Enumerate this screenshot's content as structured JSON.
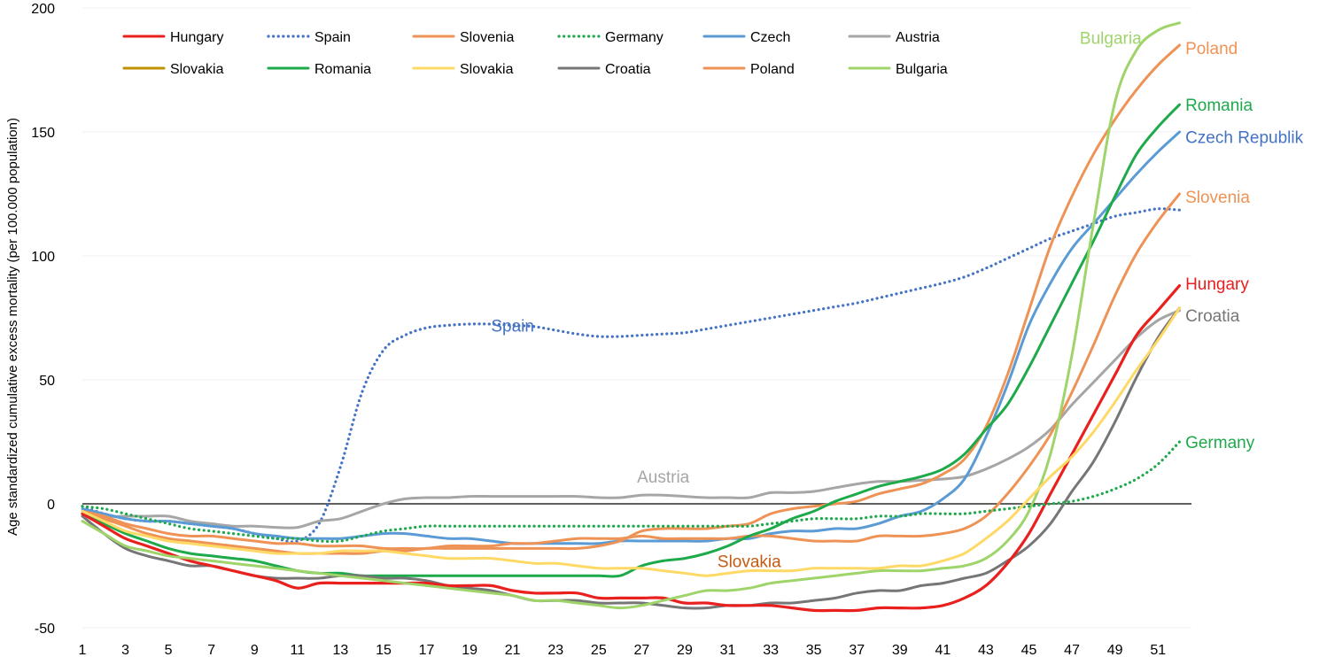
{
  "chart_data": {
    "type": "line",
    "ylabel": "Age standardized cumulative excess mortality  (per 100.000 population)",
    "ylim": [
      -50,
      200
    ],
    "yticks": [
      200,
      150,
      100,
      50,
      0,
      -50
    ],
    "x": [
      1,
      2,
      3,
      4,
      5,
      6,
      7,
      8,
      9,
      10,
      11,
      12,
      13,
      14,
      15,
      16,
      17,
      18,
      19,
      20,
      21,
      22,
      23,
      24,
      25,
      26,
      27,
      28,
      29,
      30,
      31,
      32,
      33,
      34,
      35,
      36,
      37,
      38,
      39,
      40,
      41,
      42,
      43,
      44,
      45,
      46,
      47,
      48,
      49,
      50,
      51,
      52
    ],
    "xticks": [
      1,
      3,
      5,
      7,
      9,
      11,
      13,
      15,
      17,
      19,
      21,
      23,
      25,
      27,
      29,
      31,
      33,
      35,
      37,
      39,
      41,
      43,
      45,
      47,
      49,
      51
    ],
    "xlim": [
      1,
      52.6
    ],
    "grid": "horizontal",
    "legend": {
      "placement": "top-left",
      "entries": [
        {
          "label": "Hungary",
          "color": "#e8201e",
          "dash": "solid"
        },
        {
          "label": "Spain",
          "color": "#4472c4",
          "dash": "dotted"
        },
        {
          "label": "Slovenia",
          "color": "#ee9355",
          "dash": "solid"
        },
        {
          "label": "Germany",
          "color": "#1ea94b",
          "dash": "dotted"
        },
        {
          "label": "Czech",
          "color": "#5b9bd5",
          "dash": "solid"
        },
        {
          "label": "Austria",
          "color": "#a6a6a6",
          "dash": "solid"
        },
        {
          "label": "Slovakia",
          "color": "#bf9000",
          "dash": "solid"
        },
        {
          "label": "Romania",
          "color": "#1ea94b",
          "dash": "solid"
        },
        {
          "label": "Slovakia",
          "color": "#ffd966",
          "dash": "solid"
        },
        {
          "label": "Croatia",
          "color": "#767676",
          "dash": "solid"
        },
        {
          "label": "Poland",
          "color": "#ee9355",
          "dash": "solid"
        },
        {
          "label": "Bulgaria",
          "color": "#9fd46a",
          "dash": "solid"
        }
      ]
    },
    "annotations": [
      {
        "text": "Spain",
        "color": "#4472c4",
        "anchor_x": 21,
        "anchor_y": 72
      },
      {
        "text": "Austria",
        "color": "#a6a6a6",
        "anchor_x": 28,
        "anchor_y": 11
      },
      {
        "text": "Slovakia",
        "color": "#c55a11",
        "anchor_x": 32,
        "anchor_y": -23
      },
      {
        "text": "Bulgaria",
        "color": "#9fd46a",
        "anchor_x": 48.8,
        "anchor_y": 188
      },
      {
        "text": "Poland",
        "color": "#ee9355",
        "anchor_x": 52.6,
        "anchor_y": 184
      },
      {
        "text": "Romania",
        "color": "#1ea94b",
        "anchor_x": 52.6,
        "anchor_y": 161
      },
      {
        "text": "Czech Republik",
        "color": "#4472c4",
        "anchor_x": 52.6,
        "anchor_y": 148
      },
      {
        "text": "Slovenia",
        "color": "#ee9355",
        "anchor_x": 52.6,
        "anchor_y": 124
      },
      {
        "text": "Hungary",
        "color": "#e8201e",
        "anchor_x": 52.6,
        "anchor_y": 89
      },
      {
        "text": "Croatia",
        "color": "#767676",
        "anchor_x": 52.6,
        "anchor_y": 76
      },
      {
        "text": "Germany",
        "color": "#1ea94b",
        "anchor_x": 52.6,
        "anchor_y": 25
      }
    ],
    "series": [
      {
        "name": "Spain",
        "color": "#4472c4",
        "dash": "dotted",
        "width": 3,
        "values": [
          -1,
          -4,
          -6,
          -7,
          -7,
          -8,
          -9,
          -10,
          -12,
          -14,
          -15,
          -8,
          15,
          45,
          62,
          68,
          71,
          72,
          72.5,
          72.5,
          72,
          71.5,
          70,
          68.5,
          67.5,
          67.5,
          68,
          68.5,
          69,
          70.5,
          72,
          73.5,
          75,
          76.5,
          78,
          79.5,
          81,
          83,
          85,
          87,
          89,
          91.5,
          95,
          99,
          103,
          107,
          110,
          113,
          116,
          117.5,
          119,
          118.5
        ]
      },
      {
        "name": "Austria",
        "color": "#a6a6a6",
        "dash": "solid",
        "width": 3,
        "values": [
          -3,
          -5,
          -5,
          -5,
          -5,
          -7,
          -8,
          -9,
          -9,
          -9.5,
          -9.5,
          -7,
          -6,
          -3,
          0,
          2,
          2.5,
          2.5,
          3,
          3,
          3,
          3,
          3,
          3,
          2.5,
          2.5,
          3.5,
          3.5,
          3,
          2.5,
          2.5,
          2.5,
          4.5,
          4.5,
          5,
          6.5,
          8,
          9,
          9,
          9.5,
          10,
          11,
          14,
          18,
          23,
          30,
          40,
          49,
          58,
          67,
          74,
          78
        ]
      },
      {
        "name": "Czech",
        "color": "#5b9bd5",
        "dash": "solid",
        "width": 3,
        "values": [
          -2,
          -4,
          -6,
          -7,
          -7,
          -8,
          -9,
          -10,
          -12,
          -13,
          -14,
          -14,
          -14,
          -13,
          -12,
          -12,
          -13,
          -14,
          -14,
          -15,
          -16,
          -16,
          -16,
          -16,
          -16,
          -15,
          -15,
          -15,
          -15,
          -15,
          -14,
          -14,
          -12,
          -11,
          -11,
          -10,
          -10,
          -8,
          -5,
          -3,
          2,
          10,
          27,
          48,
          72,
          89,
          103,
          113,
          123,
          133,
          142,
          150
        ]
      },
      {
        "name": "Slovenia",
        "color": "#ee9355",
        "dash": "solid",
        "width": 3,
        "values": [
          -3,
          -5,
          -8,
          -10,
          -12,
          -13,
          -13,
          -14,
          -15,
          -16,
          -16,
          -17,
          -17,
          -17,
          -18,
          -18,
          -18,
          -17,
          -17,
          -17,
          -16,
          -16,
          -15,
          -14,
          -14,
          -14,
          -13,
          -14,
          -14,
          -14,
          -14,
          -13,
          -13,
          -14,
          -15,
          -15,
          -15,
          -13,
          -13,
          -13,
          -12,
          -10,
          -5,
          4,
          15,
          28,
          45,
          64,
          84,
          101,
          114,
          125
        ]
      },
      {
        "name": "Poland",
        "color": "#ee9355",
        "dash": "solid",
        "width": 3,
        "values": [
          -3,
          -6,
          -9,
          -12,
          -14,
          -15,
          -16,
          -17,
          -18,
          -19,
          -20,
          -20,
          -20,
          -20,
          -19,
          -19,
          -18,
          -18,
          -18,
          -18,
          -18,
          -18,
          -18,
          -18,
          -17,
          -15,
          -11,
          -10,
          -10,
          -10,
          -9,
          -8,
          -4,
          -2,
          -1,
          0,
          1,
          4,
          6,
          8,
          12,
          18,
          31,
          52,
          78,
          104,
          124,
          141,
          155,
          167,
          177,
          185
        ]
      },
      {
        "name": "Romania",
        "color": "#1ea94b",
        "dash": "solid",
        "width": 3,
        "values": [
          -4,
          -8,
          -12,
          -15,
          -18,
          -20,
          -21,
          -22,
          -23,
          -25,
          -27,
          -28,
          -28,
          -29,
          -29,
          -29,
          -29,
          -29,
          -29,
          -29,
          -29,
          -29,
          -29,
          -29,
          -29,
          -29,
          -25,
          -23,
          -22,
          -20,
          -17,
          -13,
          -10,
          -6,
          -3,
          1,
          4,
          7,
          9,
          11,
          14,
          20,
          30,
          40,
          55,
          72,
          89,
          106,
          124,
          141,
          152,
          161
        ]
      },
      {
        "name": "Croatia",
        "color": "#767676",
        "dash": "solid",
        "width": 3,
        "values": [
          -5,
          -12,
          -18,
          -21,
          -23,
          -25,
          -25,
          -27,
          -29,
          -30,
          -30,
          -30,
          -29,
          -29,
          -30,
          -30,
          -31,
          -33,
          -34,
          -35,
          -37,
          -39,
          -39,
          -39,
          -40,
          -40,
          -40,
          -41,
          -42,
          -42,
          -41,
          -41,
          -40,
          -40,
          -39,
          -38,
          -36,
          -35,
          -35,
          -33,
          -32,
          -30,
          -28,
          -23,
          -17,
          -8,
          5,
          17,
          33,
          51,
          67,
          79
        ]
      },
      {
        "name": "Hungary",
        "color": "#e8201e",
        "dash": "solid",
        "width": 3.2,
        "values": [
          -4,
          -9,
          -14,
          -17,
          -20,
          -23,
          -25,
          -27,
          -29,
          -31,
          -34,
          -32,
          -32,
          -32,
          -32,
          -32,
          -32,
          -33,
          -33,
          -33,
          -35,
          -36,
          -36,
          -36,
          -38,
          -38,
          -38,
          -38,
          -40,
          -40,
          -41,
          -41,
          -41,
          -42,
          -43,
          -43,
          -43,
          -42,
          -42,
          -42,
          -41,
          -38,
          -33,
          -24,
          -12,
          4,
          20,
          36,
          52,
          68,
          78,
          88
        ]
      },
      {
        "name": "Bulgaria",
        "color": "#9fd46a",
        "dash": "solid",
        "width": 3,
        "values": [
          -7,
          -12,
          -17,
          -19,
          -21,
          -22,
          -23,
          -24,
          -25,
          -26,
          -27,
          -28,
          -29,
          -30,
          -31,
          -32,
          -33,
          -34,
          -35,
          -36,
          -37,
          -39,
          -39,
          -40,
          -41,
          -42,
          -41,
          -39,
          -37,
          -35,
          -35,
          -34,
          -32,
          -31,
          -30,
          -29,
          -28,
          -27,
          -27,
          -27,
          -26,
          -25,
          -22,
          -15,
          -3,
          20,
          60,
          113,
          162,
          183,
          191,
          194
        ]
      },
      {
        "name": "Germany",
        "color": "#1ea94b",
        "dash": "dotted",
        "width": 3,
        "values": [
          -1,
          -2,
          -4,
          -6,
          -8,
          -10,
          -11,
          -12,
          -13,
          -14,
          -14,
          -15,
          -15,
          -13,
          -11,
          -10,
          -9,
          -9,
          -9,
          -9,
          -9,
          -9,
          -9,
          -9,
          -9,
          -9,
          -9,
          -9,
          -9,
          -9,
          -9,
          -9,
          -8,
          -7,
          -6,
          -6,
          -6,
          -5,
          -5,
          -4,
          -4,
          -4,
          -3,
          -2,
          -1,
          0,
          1,
          3,
          6,
          10,
          16,
          25
        ]
      },
      {
        "name": "Slovakia",
        "color": "#ffd966",
        "dash": "solid",
        "width": 3,
        "values": [
          -3,
          -7,
          -11,
          -13,
          -15,
          -16,
          -17,
          -18,
          -19,
          -20,
          -20,
          -20,
          -19,
          -19,
          -19,
          -20,
          -21,
          -22,
          -22,
          -22,
          -23,
          -24,
          -24,
          -25,
          -26,
          -26,
          -26,
          -27,
          -28,
          -29,
          -28,
          -27,
          -27,
          -27,
          -26,
          -26,
          -26,
          -26,
          -25,
          -25,
          -23,
          -20,
          -14,
          -7,
          2,
          11,
          19,
          29,
          41,
          54,
          66,
          79
        ]
      }
    ]
  }
}
